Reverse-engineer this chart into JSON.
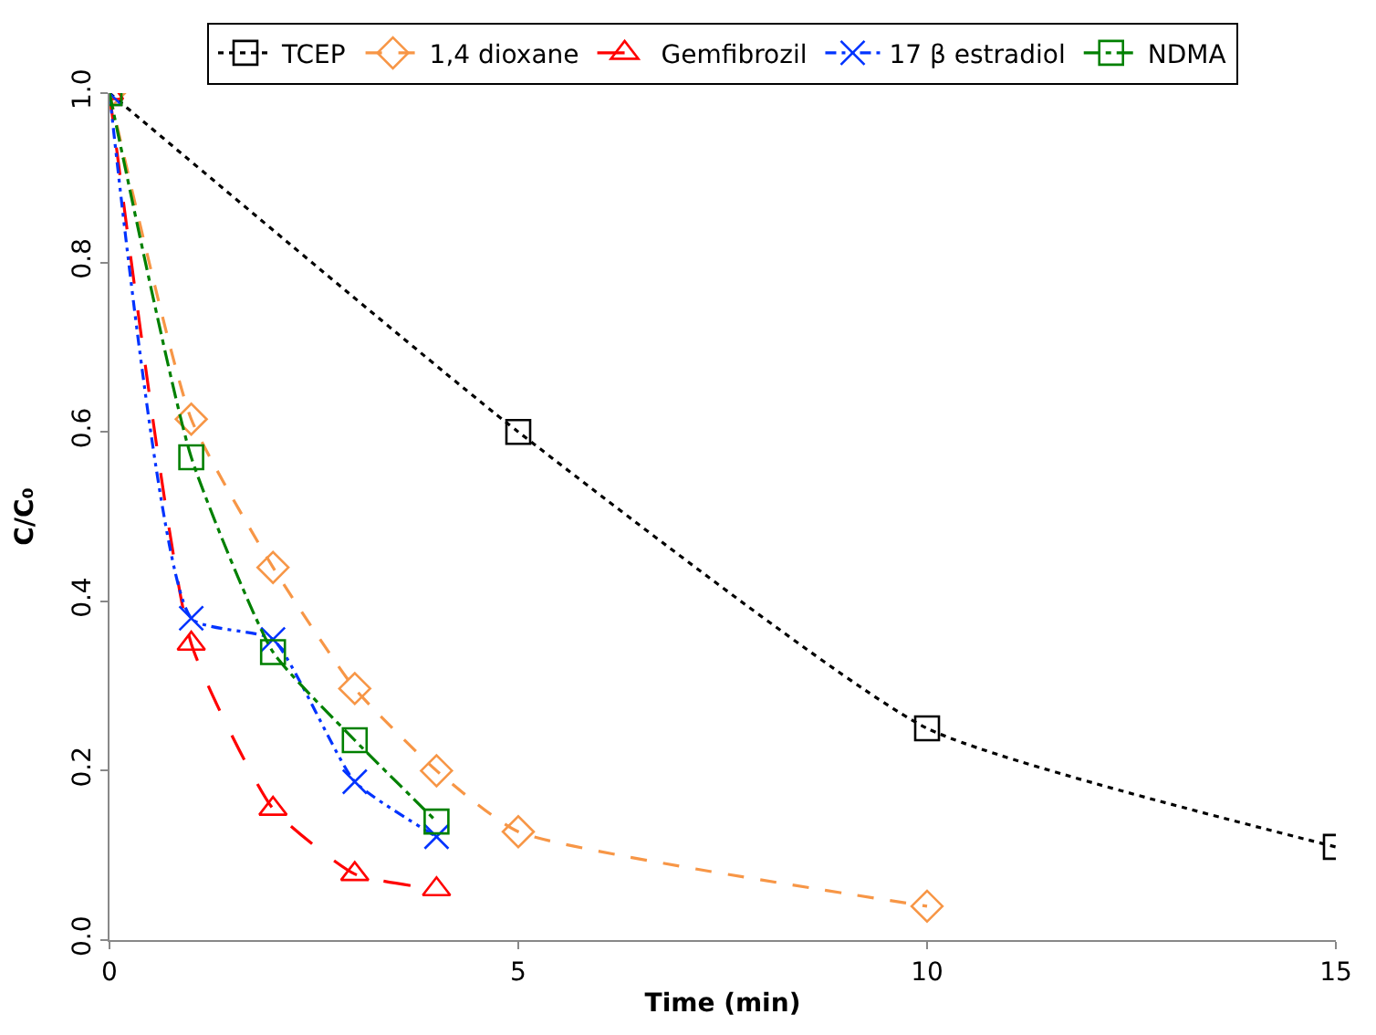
{
  "chart_data": {
    "type": "line",
    "xlabel": "Time (min)",
    "ylabel": "C/C₀",
    "xlim": [
      0,
      15
    ],
    "xticks": [
      0,
      5,
      10,
      15
    ],
    "ylim": [
      0,
      1
    ],
    "yticks": [
      {
        "value": 0,
        "label": "0.0"
      },
      {
        "value": 0.2,
        "label": "0.2"
      },
      {
        "value": 0.4,
        "label": "0.4"
      },
      {
        "value": 0.6,
        "label": "0.6"
      },
      {
        "value": 0.8,
        "label": "0.8"
      },
      {
        "value": 1,
        "label": "1.0"
      }
    ],
    "legend": "top",
    "series": [
      {
        "name": "TCEP",
        "color": "#000000",
        "line_style": "dotted",
        "marker": "square",
        "x": [
          0,
          5,
          10,
          15
        ],
        "values": [
          1,
          0.6,
          0.25,
          0.11
        ]
      },
      {
        "name": "1,4 dioxane",
        "color": "#f79646",
        "line_style": "dashed",
        "marker": "diamond",
        "x": [
          0,
          1,
          2,
          3,
          4,
          5,
          10
        ],
        "values": [
          1,
          0.615,
          0.44,
          0.297,
          0.2,
          0.128,
          0.04
        ]
      },
      {
        "name": "Gemfibrozil",
        "color": "#ff0000",
        "line_style": "longdash",
        "marker": "triangle",
        "x": [
          0,
          1,
          2,
          3,
          4
        ],
        "values": [
          1,
          0.35,
          0.155,
          0.078,
          0.06
        ]
      },
      {
        "name": "17 β estradiol",
        "color": "#0033ff",
        "line_style": "dashdotdot",
        "marker": "cross",
        "x": [
          0,
          1,
          2,
          3,
          4
        ],
        "values": [
          1,
          0.38,
          0.355,
          0.187,
          0.122
        ]
      },
      {
        "name": "NDMA",
        "color": "#008000",
        "line_style": "dashdot",
        "marker": "square",
        "x": [
          0,
          1,
          2,
          3,
          4
        ],
        "values": [
          1,
          0.57,
          0.34,
          0.236,
          0.14
        ]
      }
    ]
  }
}
